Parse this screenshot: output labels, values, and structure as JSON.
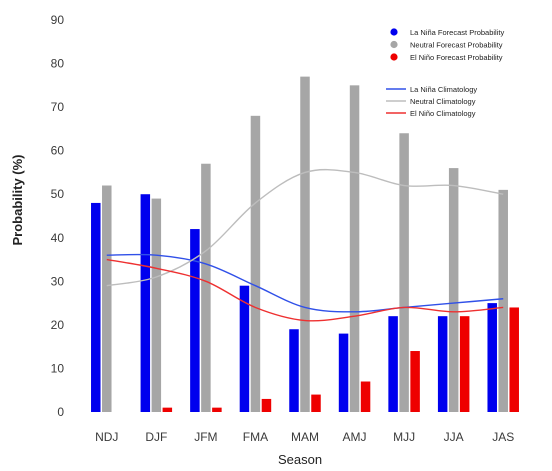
{
  "chart_data": {
    "type": "bar",
    "xlabel": "Season",
    "ylabel": "Probability (%)",
    "ylim": [
      0,
      90
    ],
    "yticks": [
      0,
      10,
      20,
      30,
      40,
      50,
      60,
      70,
      80,
      90
    ],
    "grid": false,
    "legend_position": "top-right",
    "categories": [
      "NDJ",
      "DJF",
      "JFM",
      "FMA",
      "MAM",
      "AMJ",
      "MJJ",
      "JJA",
      "JAS"
    ],
    "series": [
      {
        "name": "La Niña Forecast Probability",
        "color": "#0000ee",
        "values": [
          48,
          50,
          42,
          29,
          19,
          18,
          22,
          22,
          25
        ]
      },
      {
        "name": "Neutral Forecast Probability",
        "color": "#a6a6a6",
        "values": [
          52,
          49,
          57,
          68,
          77,
          75,
          64,
          56,
          51
        ]
      },
      {
        "name": "El Niño Forecast Probability",
        "color": "#ee0000",
        "values": [
          0,
          1,
          1,
          3,
          4,
          7,
          14,
          22,
          24
        ]
      }
    ],
    "lines": [
      {
        "name": "La Niña Climatology",
        "color": "#3050e8",
        "values": [
          36,
          36,
          34,
          29,
          24,
          23,
          24,
          25,
          26
        ]
      },
      {
        "name": "Neutral Climatology",
        "color": "#bdbdbd",
        "values": [
          29,
          31,
          37,
          48,
          55,
          55,
          52,
          52,
          50
        ]
      },
      {
        "name": "El Niño Climatology",
        "color": "#ee3030",
        "values": [
          35,
          33,
          30,
          24,
          21,
          22,
          24,
          23,
          24
        ]
      }
    ]
  }
}
